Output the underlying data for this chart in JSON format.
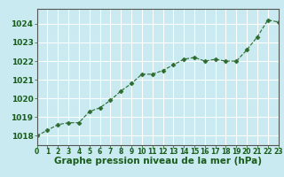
{
  "x": [
    0,
    1,
    2,
    3,
    4,
    5,
    6,
    7,
    8,
    9,
    10,
    11,
    12,
    13,
    14,
    15,
    16,
    17,
    18,
    19,
    20,
    21,
    22,
    23
  ],
  "y": [
    1018.0,
    1018.3,
    1018.6,
    1018.7,
    1018.7,
    1019.3,
    1019.5,
    1019.9,
    1020.4,
    1020.8,
    1021.3,
    1021.3,
    1021.5,
    1021.8,
    1022.1,
    1022.2,
    1022.0,
    1022.1,
    1022.0,
    1022.0,
    1022.6,
    1023.3,
    1024.2,
    1024.1
  ],
  "ylim": [
    1017.5,
    1024.8
  ],
  "xlim": [
    0,
    23
  ],
  "yticks": [
    1018,
    1019,
    1020,
    1021,
    1022,
    1023,
    1024
  ],
  "xticks": [
    0,
    1,
    2,
    3,
    4,
    5,
    6,
    7,
    8,
    9,
    10,
    11,
    12,
    13,
    14,
    15,
    16,
    17,
    18,
    19,
    20,
    21,
    22,
    23
  ],
  "xlabel": "Graphe pression niveau de la mer (hPa)",
  "line_color": "#2d6a2d",
  "marker": "D",
  "marker_size": 2.5,
  "bg_color": "#c8eaf0",
  "grid_color": "#ffffff",
  "text_color": "#1a5c1a",
  "xlabel_fontsize": 7.5,
  "ytick_fontsize": 6.5,
  "xtick_fontsize": 5.5
}
